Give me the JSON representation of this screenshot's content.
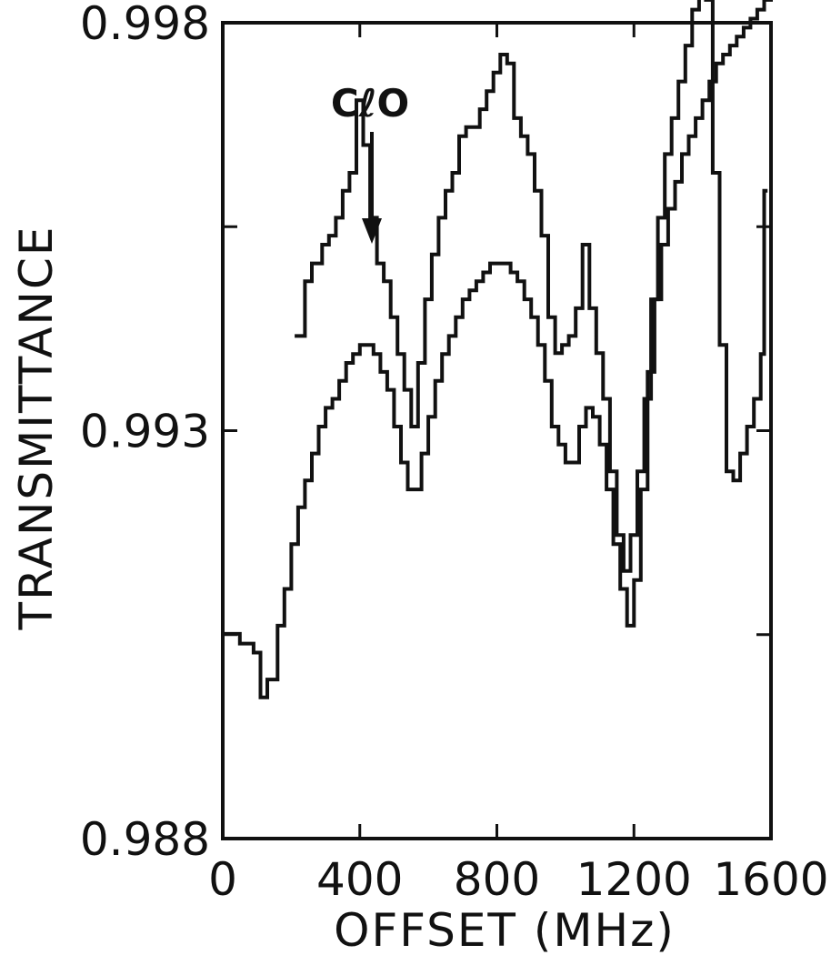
{
  "chart_data": {
    "type": "line",
    "xlabel": "OFFSET (MHz)",
    "ylabel": "TRANSMITTANCE",
    "xlim": [
      0,
      1600
    ],
    "ylim": [
      0.988,
      0.998
    ],
    "x_ticks": [
      0,
      400,
      800,
      1200,
      1600
    ],
    "x_tick_labels": [
      "0",
      "400",
      "800",
      "1200",
      "1600"
    ],
    "y_ticks": [
      0.988,
      0.993,
      0.998
    ],
    "y_tick_labels": [
      "0.988",
      "0.993",
      "0.998"
    ],
    "y_minor_ticks": [
      0.9905,
      0.9955
    ],
    "grid": false,
    "step": true,
    "annotation": {
      "text": "CℓO",
      "x": 440
    },
    "series": [
      {
        "points": [
          [
            210,
            0.99416
          ],
          [
            240,
            0.99483
          ],
          [
            260,
            0.99505
          ],
          [
            290,
            0.99528
          ],
          [
            310,
            0.99539
          ],
          [
            330,
            0.99561
          ],
          [
            350,
            0.99594
          ],
          [
            370,
            0.99616
          ],
          [
            390,
            0.99705
          ],
          [
            410,
            0.9965
          ],
          [
            430,
            0.99561
          ],
          [
            450,
            0.99505
          ],
          [
            470,
            0.99483
          ],
          [
            490,
            0.99439
          ],
          [
            510,
            0.99394
          ],
          [
            530,
            0.9935
          ],
          [
            550,
            0.99305
          ],
          [
            570,
            0.99383
          ],
          [
            590,
            0.99461
          ],
          [
            610,
            0.99516
          ],
          [
            630,
            0.99561
          ],
          [
            650,
            0.99594
          ],
          [
            670,
            0.99616
          ],
          [
            690,
            0.99661
          ],
          [
            710,
            0.99672
          ],
          [
            730,
            0.99672
          ],
          [
            750,
            0.99694
          ],
          [
            770,
            0.99716
          ],
          [
            790,
            0.99739
          ],
          [
            810,
            0.99761
          ],
          [
            830,
            0.9975
          ],
          [
            850,
            0.99683
          ],
          [
            870,
            0.99661
          ],
          [
            890,
            0.99639
          ],
          [
            910,
            0.99594
          ],
          [
            930,
            0.99539
          ],
          [
            950,
            0.99439
          ],
          [
            970,
            0.99395
          ],
          [
            990,
            0.99405
          ],
          [
            1010,
            0.99416
          ],
          [
            1030,
            0.9945
          ],
          [
            1050,
            0.99528
          ],
          [
            1070,
            0.9945
          ],
          [
            1090,
            0.99395
          ],
          [
            1110,
            0.99339
          ],
          [
            1130,
            0.9925
          ],
          [
            1150,
            0.99172
          ],
          [
            1170,
            0.99128
          ],
          [
            1190,
            0.99172
          ],
          [
            1210,
            0.9925
          ],
          [
            1230,
            0.99339
          ],
          [
            1250,
            0.99461
          ],
          [
            1270,
            0.99561
          ],
          [
            1290,
            0.99639
          ],
          [
            1310,
            0.99683
          ],
          [
            1330,
            0.99728
          ],
          [
            1350,
            0.99772
          ],
          [
            1370,
            0.99816
          ],
          [
            1390,
            0.99839
          ],
          [
            1410,
            0.99828
          ],
          [
            1430,
            0.99616
          ],
          [
            1450,
            0.99405
          ],
          [
            1470,
            0.9925
          ],
          [
            1490,
            0.99239
          ],
          [
            1510,
            0.99272
          ],
          [
            1530,
            0.99305
          ],
          [
            1550,
            0.99339
          ],
          [
            1570,
            0.99394
          ],
          [
            1580,
            0.99594
          ]
        ]
      },
      {
        "points": [
          [
            0,
            0.99051
          ],
          [
            50,
            0.99039
          ],
          [
            90,
            0.99028
          ],
          [
            110,
            0.98973
          ],
          [
            130,
            0.98995
          ],
          [
            160,
            0.99061
          ],
          [
            180,
            0.99106
          ],
          [
            200,
            0.99161
          ],
          [
            220,
            0.99206
          ],
          [
            240,
            0.99239
          ],
          [
            260,
            0.99272
          ],
          [
            280,
            0.99305
          ],
          [
            300,
            0.99328
          ],
          [
            320,
            0.99339
          ],
          [
            340,
            0.99361
          ],
          [
            360,
            0.99383
          ],
          [
            380,
            0.99394
          ],
          [
            400,
            0.99405
          ],
          [
            420,
            0.99405
          ],
          [
            440,
            0.99394
          ],
          [
            460,
            0.99372
          ],
          [
            480,
            0.9935
          ],
          [
            500,
            0.99305
          ],
          [
            520,
            0.99261
          ],
          [
            540,
            0.99228
          ],
          [
            560,
            0.99228
          ],
          [
            580,
            0.99272
          ],
          [
            600,
            0.99317
          ],
          [
            620,
            0.99361
          ],
          [
            640,
            0.99394
          ],
          [
            660,
            0.99416
          ],
          [
            680,
            0.99439
          ],
          [
            700,
            0.99461
          ],
          [
            720,
            0.99472
          ],
          [
            740,
            0.99483
          ],
          [
            760,
            0.99494
          ],
          [
            780,
            0.99505
          ],
          [
            800,
            0.99505
          ],
          [
            820,
            0.99505
          ],
          [
            840,
            0.99494
          ],
          [
            860,
            0.99483
          ],
          [
            880,
            0.99461
          ],
          [
            900,
            0.99439
          ],
          [
            920,
            0.99405
          ],
          [
            940,
            0.99361
          ],
          [
            960,
            0.99305
          ],
          [
            980,
            0.99283
          ],
          [
            1000,
            0.99261
          ],
          [
            1020,
            0.99261
          ],
          [
            1040,
            0.99305
          ],
          [
            1060,
            0.99328
          ],
          [
            1080,
            0.99317
          ],
          [
            1100,
            0.99283
          ],
          [
            1120,
            0.99228
          ],
          [
            1140,
            0.99161
          ],
          [
            1160,
            0.99106
          ],
          [
            1180,
            0.99061
          ],
          [
            1200,
            0.99117
          ],
          [
            1220,
            0.99228
          ],
          [
            1240,
            0.99372
          ],
          [
            1260,
            0.99461
          ],
          [
            1280,
            0.99528
          ],
          [
            1300,
            0.99572
          ],
          [
            1320,
            0.99605
          ],
          [
            1340,
            0.99639
          ],
          [
            1360,
            0.99661
          ],
          [
            1380,
            0.99683
          ],
          [
            1400,
            0.99705
          ],
          [
            1420,
            0.99728
          ],
          [
            1440,
            0.9975
          ],
          [
            1460,
            0.99761
          ],
          [
            1480,
            0.99772
          ],
          [
            1500,
            0.99783
          ],
          [
            1520,
            0.99794
          ],
          [
            1540,
            0.99805
          ],
          [
            1560,
            0.99816
          ],
          [
            1580,
            0.99828
          ],
          [
            1600,
            0.99839
          ]
        ]
      }
    ]
  }
}
